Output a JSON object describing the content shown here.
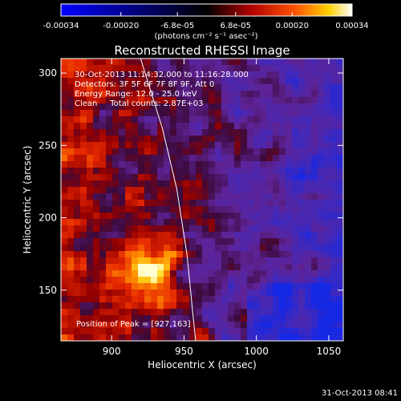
{
  "chart_data": {
    "type": "heatmap",
    "title": "Reconstructed RHESSI Image",
    "xlabel": "Heliocentric X (arcsec)",
    "ylabel": "Heliocentric Y (arcsec)",
    "xlim": [
      865,
      1060
    ],
    "ylim": [
      115,
      310
    ],
    "x_ticks": [
      "900",
      "950",
      "1000",
      "1050"
    ],
    "y_ticks": [
      "150",
      "200",
      "250",
      "300"
    ],
    "colorbar": {
      "ticks": [
        "-0.00034",
        "-0.00020",
        "-6.8e-05",
        "6.8e-05",
        "0.00020",
        "0.00034"
      ],
      "unit_label": "(photons cm⁻² s⁻¹ asec⁻²)",
      "range": [
        -0.00034,
        0.00034
      ]
    },
    "annotations": [
      "30-Oct-2013 11:14:32.000 to 11:16:28.000",
      "Detectors: 3F 5F 6F 7F 8F 9F, Att 0",
      "Energy Range: 12.0 - 25.0 keV",
      "Clean     Total counts: 2.87E+03"
    ],
    "peak_label": "Position of Peak = [927,163]",
    "peak": [
      927,
      163
    ],
    "limb_curve": [
      [
        920,
        310
      ],
      [
        935,
        262
      ],
      [
        945,
        220
      ],
      [
        952,
        175
      ],
      [
        958,
        115
      ]
    ],
    "timestamp": "31-Oct-2013 08:41"
  }
}
